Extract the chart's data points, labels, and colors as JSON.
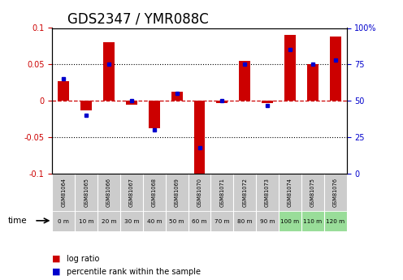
{
  "title": "GDS2347 / YMR088C",
  "samples": [
    "GSM81064",
    "GSM81065",
    "GSM81066",
    "GSM81067",
    "GSM81068",
    "GSM81069",
    "GSM81070",
    "GSM81071",
    "GSM81072",
    "GSM81073",
    "GSM81074",
    "GSM81075",
    "GSM81076"
  ],
  "time_labels": [
    "0 m",
    "10 m",
    "20 m",
    "30 m",
    "40 m",
    "50 m",
    "60 m",
    "70 m",
    "80 m",
    "90 m",
    "100 m",
    "110 m",
    "120 m"
  ],
  "log_ratio": [
    0.027,
    -0.013,
    0.08,
    -0.005,
    -0.038,
    0.012,
    -0.105,
    -0.003,
    0.055,
    -0.003,
    0.09,
    0.05,
    0.088
  ],
  "percentile": [
    65,
    40,
    75,
    50,
    30,
    55,
    18,
    50,
    75,
    47,
    85,
    75,
    78
  ],
  "ylim_left": [
    -0.1,
    0.1
  ],
  "ylim_right": [
    0,
    100
  ],
  "bar_color": "#cc0000",
  "dot_color": "#0000cc",
  "zero_line_color": "#cc0000",
  "title_fontsize": 12,
  "tick_color_left": "#cc0000",
  "tick_color_right": "#0000cc",
  "time_row_colors": [
    "#cccccc",
    "#cccccc",
    "#cccccc",
    "#cccccc",
    "#cccccc",
    "#cccccc",
    "#cccccc",
    "#cccccc",
    "#cccccc",
    "#cccccc",
    "#99dd99",
    "#99dd99",
    "#99dd99"
  ],
  "sample_row_color": "#cccccc"
}
